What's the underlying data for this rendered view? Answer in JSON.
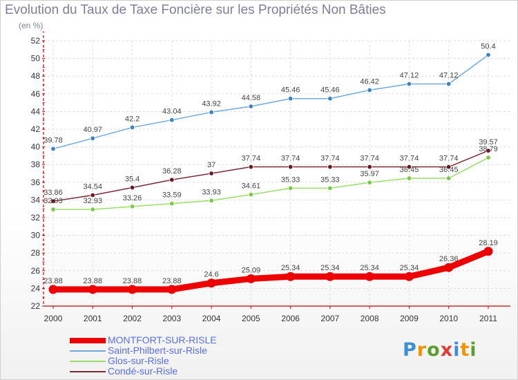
{
  "title": "Evolution du Taux de Taxe Foncière sur les Propriétés Non Bâties",
  "unit_label": "(en %)",
  "logo": {
    "text": "Proxiti",
    "colors": [
      "#3a8fd6",
      "#f39200",
      "#5a9e2f",
      "#e53935",
      "#3a8fd6",
      "#f39200",
      "#5a9e2f"
    ]
  },
  "colors": {
    "axis": "#cc0000",
    "grid": "#dddddd",
    "tick_text": "#333333"
  },
  "chart_data": {
    "type": "line",
    "title": "Evolution du Taux de Taxe Foncière sur les Propriétés Non Bâties",
    "xlabel": "",
    "ylabel": "(en %)",
    "x": [
      "2000",
      "2001",
      "2002",
      "2003",
      "2004",
      "2005",
      "2006",
      "2007",
      "2008",
      "2009",
      "2010",
      "2011"
    ],
    "ylim": [
      22,
      52
    ],
    "yticks": [
      22,
      24,
      26,
      28,
      30,
      32,
      34,
      36,
      38,
      40,
      42,
      44,
      46,
      48,
      50,
      52
    ],
    "grid": true,
    "legend_position": "bottom-left",
    "series": [
      {
        "name": "MONTFORT-SUR-RISLE",
        "color": "#ee0000",
        "emphasis": true,
        "values": [
          23.88,
          23.88,
          23.88,
          23.88,
          24.6,
          25.09,
          25.34,
          25.34,
          25.34,
          25.34,
          26.36,
          28.19
        ],
        "labels": [
          "23.88",
          "23.88",
          "23.88",
          "23.88",
          "24.6",
          "25.09",
          "25.34",
          "25.34",
          "25.34",
          "25.34",
          "26.36",
          "28.19"
        ]
      },
      {
        "name": "Saint-Philbert-sur-Risle",
        "color": "#6fa8dc",
        "marker": "#3b84c4",
        "values": [
          39.78,
          40.97,
          42.2,
          43.04,
          43.92,
          44.58,
          45.46,
          45.46,
          46.42,
          47.12,
          47.12,
          50.4
        ],
        "labels": [
          "39.78",
          "40.97",
          "42.2",
          "43.04",
          "43.92",
          "44.58",
          "45.46",
          "45.46",
          "46.42",
          "47.12",
          "47.12",
          "50.4"
        ]
      },
      {
        "name": "Glos-sur-Risle",
        "color": "#99dd66",
        "marker": "#77cc44",
        "values": [
          32.93,
          32.93,
          33.26,
          33.59,
          33.93,
          34.61,
          35.33,
          35.33,
          35.97,
          36.45,
          36.45,
          38.79
        ],
        "labels": [
          "32.93",
          "32.93",
          "33.26",
          "33.59",
          "33.93",
          "34.61",
          "35.33",
          "35.33",
          "35.97",
          "36.45",
          "36.45",
          "38.79"
        ]
      },
      {
        "name": "Condé-sur-Risle",
        "color": "#7a2a35",
        "marker": "#6a1822",
        "values": [
          33.86,
          34.54,
          35.4,
          36.28,
          37.0,
          37.74,
          37.74,
          37.74,
          37.74,
          37.74,
          37.74,
          39.57
        ],
        "labels": [
          "33.86",
          "34.54",
          "35.4",
          "36.28",
          "37",
          "37.74",
          "37.74",
          "37.74",
          "37.74",
          "37.74",
          "37.74",
          "39.57"
        ]
      }
    ]
  }
}
